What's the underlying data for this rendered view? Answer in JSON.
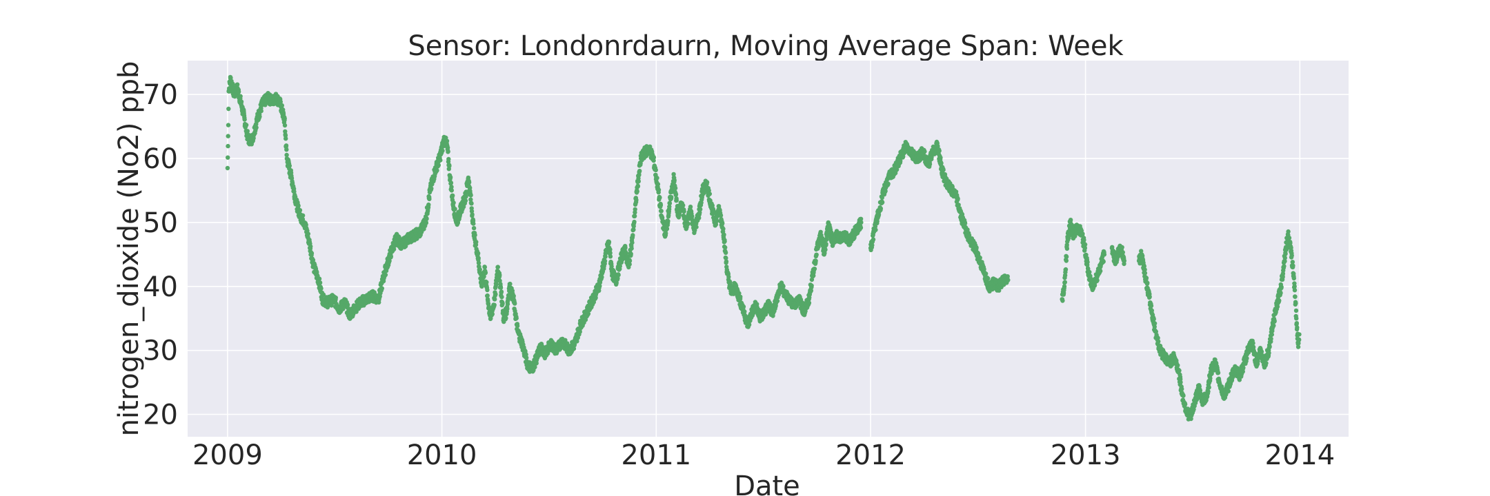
{
  "chart_data": {
    "type": "scatter",
    "title": "Sensor: Londonrdaurn, Moving Average Span: Week",
    "xlabel": "Date",
    "ylabel": "nitrogen_dioxide (No2) ppb",
    "x_ticks": [
      "2009",
      "2010",
      "2011",
      "2012",
      "2013",
      "2014"
    ],
    "y_ticks": [
      20,
      30,
      40,
      50,
      60,
      70
    ],
    "xlim": [
      "2008-10-25",
      "2014-03-25"
    ],
    "ylim": [
      16.5,
      75.3
    ],
    "grid": true,
    "legend": "none",
    "colors": {
      "series": "#55a868",
      "plot_bg": "#eaeaf2",
      "grid": "#ffffff",
      "text": "#262626"
    },
    "series": [
      {
        "segments": [
          [
            [
              "2009-01-01",
              58.5
            ],
            [
              "2009-01-02",
              63.5
            ],
            [
              "2009-01-03",
              70.5
            ],
            [
              "2009-01-06",
              72.5
            ],
            [
              "2009-01-12",
              70.0
            ],
            [
              "2009-01-18",
              71.0
            ],
            [
              "2009-01-28",
              67.0
            ],
            [
              "2009-02-05",
              63.0
            ],
            [
              "2009-02-12",
              63.0
            ],
            [
              "2009-02-20",
              66.0
            ],
            [
              "2009-03-01",
              68.5
            ],
            [
              "2009-03-10",
              69.5
            ],
            [
              "2009-03-18",
              69.0
            ],
            [
              "2009-03-25",
              69.5
            ],
            [
              "2009-04-01",
              68.5
            ],
            [
              "2009-04-08",
              66.0
            ],
            [
              "2009-04-12",
              60.0
            ],
            [
              "2009-04-20",
              57.0
            ],
            [
              "2009-04-28",
              53.0
            ],
            [
              "2009-05-05",
              51.0
            ],
            [
              "2009-05-12",
              50.0
            ],
            [
              "2009-05-20",
              47.0
            ],
            [
              "2009-05-28",
              43.0
            ],
            [
              "2009-06-05",
              41.0
            ],
            [
              "2009-06-12",
              38.0
            ],
            [
              "2009-06-20",
              37.5
            ],
            [
              "2009-07-01",
              38.0
            ],
            [
              "2009-07-10",
              36.5
            ],
            [
              "2009-07-20",
              37.5
            ],
            [
              "2009-07-28",
              35.5
            ],
            [
              "2009-08-05",
              36.5
            ],
            [
              "2009-08-15",
              37.5
            ],
            [
              "2009-08-25",
              38.0
            ],
            [
              "2009-09-05",
              38.5
            ],
            [
              "2009-09-15",
              38.0
            ],
            [
              "2009-09-25",
              42.0
            ],
            [
              "2009-10-05",
              45.0
            ],
            [
              "2009-10-15",
              47.5
            ],
            [
              "2009-10-25",
              46.5
            ],
            [
              "2009-11-05",
              47.5
            ],
            [
              "2009-11-15",
              48.0
            ],
            [
              "2009-11-25",
              48.5
            ],
            [
              "2009-12-05",
              50.5
            ],
            [
              "2009-12-12",
              55.0
            ],
            [
              "2009-12-20",
              58.0
            ],
            [
              "2009-12-28",
              60.0
            ],
            [
              "2010-01-05",
              63.0
            ],
            [
              "2010-01-10",
              62.0
            ],
            [
              "2010-01-15",
              57.0
            ],
            [
              "2010-01-20",
              53.0
            ],
            [
              "2010-01-26",
              50.0
            ],
            [
              "2010-02-02",
              52.0
            ],
            [
              "2010-02-10",
              54.0
            ],
            [
              "2010-02-15",
              57.0
            ],
            [
              "2010-02-20",
              53.0
            ],
            [
              "2010-02-25",
              48.0
            ],
            [
              "2010-03-03",
              45.0
            ],
            [
              "2010-03-10",
              40.0
            ],
            [
              "2010-03-15",
              43.0
            ],
            [
              "2010-03-20",
              38.0
            ],
            [
              "2010-03-25",
              35.0
            ],
            [
              "2010-04-01",
              38.0
            ],
            [
              "2010-04-06",
              43.0
            ],
            [
              "2010-04-11",
              40.0
            ],
            [
              "2010-04-16",
              35.0
            ],
            [
              "2010-04-21",
              36.0
            ],
            [
              "2010-04-26",
              40.0
            ],
            [
              "2010-05-03",
              38.0
            ],
            [
              "2010-05-10",
              33.0
            ],
            [
              "2010-05-18",
              31.0
            ],
            [
              "2010-05-26",
              28.0
            ],
            [
              "2010-06-03",
              27.0
            ],
            [
              "2010-06-10",
              28.5
            ],
            [
              "2010-06-18",
              30.5
            ],
            [
              "2010-06-26",
              29.5
            ],
            [
              "2010-07-05",
              31.0
            ],
            [
              "2010-07-15",
              30.0
            ],
            [
              "2010-07-25",
              31.5
            ],
            [
              "2010-08-05",
              30.0
            ],
            [
              "2010-08-15",
              31.0
            ],
            [
              "2010-08-25",
              34.0
            ],
            [
              "2010-09-05",
              36.0
            ],
            [
              "2010-09-15",
              38.0
            ],
            [
              "2010-09-25",
              40.0
            ],
            [
              "2010-10-05",
              44.0
            ],
            [
              "2010-10-12",
              47.0
            ],
            [
              "2010-10-18",
              42.0
            ],
            [
              "2010-10-25",
              41.0
            ],
            [
              "2010-11-01",
              44.0
            ],
            [
              "2010-11-08",
              46.0
            ],
            [
              "2010-11-15",
              43.0
            ],
            [
              "2010-11-22",
              48.0
            ],
            [
              "2010-11-29",
              55.0
            ],
            [
              "2010-12-06",
              60.0
            ],
            [
              "2010-12-13",
              61.0
            ],
            [
              "2010-12-20",
              61.5
            ],
            [
              "2010-12-27",
              60.0
            ],
            [
              "2011-01-03",
              56.0
            ],
            [
              "2011-01-10",
              51.0
            ],
            [
              "2011-01-17",
              48.0
            ],
            [
              "2011-01-24",
              53.0
            ],
            [
              "2011-01-31",
              57.0
            ],
            [
              "2011-02-07",
              51.0
            ],
            [
              "2011-02-14",
              53.0
            ],
            [
              "2011-02-21",
              49.0
            ],
            [
              "2011-02-28",
              52.0
            ],
            [
              "2011-03-07",
              49.0
            ],
            [
              "2011-03-14",
              51.0
            ],
            [
              "2011-03-21",
              55.0
            ],
            [
              "2011-03-28",
              56.0
            ],
            [
              "2011-04-04",
              53.0
            ],
            [
              "2011-04-11",
              50.0
            ],
            [
              "2011-04-18",
              52.0
            ],
            [
              "2011-04-25",
              49.0
            ],
            [
              "2011-05-02",
              42.0
            ],
            [
              "2011-05-09",
              39.0
            ],
            [
              "2011-05-16",
              40.0
            ],
            [
              "2011-05-23",
              38.0
            ],
            [
              "2011-05-30",
              36.0
            ],
            [
              "2011-06-06",
              34.0
            ],
            [
              "2011-06-13",
              36.0
            ],
            [
              "2011-06-20",
              37.0
            ],
            [
              "2011-06-27",
              35.0
            ],
            [
              "2011-07-04",
              36.0
            ],
            [
              "2011-07-11",
              37.0
            ],
            [
              "2011-07-18",
              36.0
            ],
            [
              "2011-07-25",
              38.0
            ],
            [
              "2011-08-01",
              40.0
            ],
            [
              "2011-08-08",
              39.0
            ],
            [
              "2011-08-15",
              38.0
            ],
            [
              "2011-08-22",
              37.0
            ],
            [
              "2011-09-01",
              38.0
            ],
            [
              "2011-09-10",
              36.0
            ],
            [
              "2011-09-18",
              38.0
            ],
            [
              "2011-09-25",
              42.0
            ],
            [
              "2011-10-02",
              46.0
            ],
            [
              "2011-10-09",
              48.0
            ],
            [
              "2011-10-14",
              45.0
            ],
            [
              "2011-10-21",
              50.0
            ],
            [
              "2011-10-28",
              47.0
            ],
            [
              "2011-11-04",
              48.0
            ],
            [
              "2011-11-11",
              47.5
            ],
            [
              "2011-11-18",
              48.0
            ],
            [
              "2011-11-25",
              47.0
            ],
            [
              "2011-12-02",
              48.0
            ],
            [
              "2011-12-09",
              49.0
            ],
            [
              "2011-12-16",
              50.0
            ]
          ],
          [
            [
              "2012-01-01",
              46.0
            ],
            [
              "2012-01-08",
              49.0
            ],
            [
              "2012-01-16",
              52.0
            ],
            [
              "2012-01-24",
              55.0
            ],
            [
              "2012-02-01",
              57.0
            ],
            [
              "2012-02-10",
              58.0
            ],
            [
              "2012-02-20",
              60.0
            ],
            [
              "2012-03-01",
              62.0
            ],
            [
              "2012-03-10",
              61.0
            ],
            [
              "2012-03-20",
              60.0
            ],
            [
              "2012-03-30",
              61.0
            ],
            [
              "2012-04-08",
              59.0
            ],
            [
              "2012-04-16",
              61.0
            ],
            [
              "2012-04-24",
              62.0
            ],
            [
              "2012-05-02",
              58.0
            ],
            [
              "2012-05-10",
              56.0
            ],
            [
              "2012-05-18",
              55.0
            ],
            [
              "2012-05-26",
              54.0
            ],
            [
              "2012-06-03",
              51.0
            ],
            [
              "2012-06-11",
              49.0
            ],
            [
              "2012-06-19",
              47.0
            ],
            [
              "2012-06-27",
              46.0
            ],
            [
              "2012-07-05",
              44.0
            ],
            [
              "2012-07-13",
              42.0
            ],
            [
              "2012-07-21",
              40.0
            ],
            [
              "2012-07-29",
              40.5
            ],
            [
              "2012-08-06",
              40.0
            ],
            [
              "2012-08-14",
              41.0
            ],
            [
              "2012-08-22",
              41.0
            ]
          ],
          [
            [
              "2012-11-22",
              38.0
            ],
            [
              "2012-11-26",
              40.0
            ],
            [
              "2012-12-01",
              47.0
            ],
            [
              "2012-12-06",
              50.0
            ],
            [
              "2012-12-11",
              48.0
            ],
            [
              "2012-12-16",
              49.0
            ],
            [
              "2012-12-21",
              49.0
            ],
            [
              "2012-12-26",
              48.0
            ],
            [
              "2012-12-31",
              46.0
            ],
            [
              "2013-01-06",
              42.0
            ],
            [
              "2013-01-12",
              40.0
            ],
            [
              "2013-01-18",
              41.0
            ],
            [
              "2013-01-26",
              43.0
            ],
            [
              "2013-02-02",
              45.0
            ]
          ],
          [
            [
              "2013-02-15",
              46.0
            ],
            [
              "2013-02-20",
              44.0
            ],
            [
              "2013-02-25",
              45.0
            ],
            [
              "2013-03-03",
              46.0
            ],
            [
              "2013-03-08",
              44.0
            ]
          ],
          [
            [
              "2013-04-02",
              44.0
            ],
            [
              "2013-04-07",
              45.0
            ],
            [
              "2013-04-14",
              41.0
            ],
            [
              "2013-04-22",
              37.0
            ],
            [
              "2013-04-30",
              33.0
            ],
            [
              "2013-05-08",
              30.0
            ],
            [
              "2013-05-16",
              29.0
            ],
            [
              "2013-05-24",
              28.0
            ],
            [
              "2013-06-01",
              29.0
            ],
            [
              "2013-06-08",
              27.0
            ],
            [
              "2013-06-15",
              23.0
            ],
            [
              "2013-06-22",
              20.5
            ],
            [
              "2013-06-29",
              19.5
            ],
            [
              "2013-07-06",
              22.0
            ],
            [
              "2013-07-13",
              24.0
            ],
            [
              "2013-07-20",
              22.0
            ],
            [
              "2013-07-27",
              23.0
            ],
            [
              "2013-08-03",
              27.0
            ],
            [
              "2013-08-10",
              28.0
            ],
            [
              "2013-08-17",
              25.0
            ],
            [
              "2013-08-24",
              23.0
            ],
            [
              "2013-08-31",
              24.0
            ],
            [
              "2013-09-07",
              26.0
            ],
            [
              "2013-09-14",
              27.0
            ],
            [
              "2013-09-21",
              26.0
            ],
            [
              "2013-09-28",
              28.0
            ],
            [
              "2013-10-05",
              30.0
            ],
            [
              "2013-10-12",
              31.0
            ],
            [
              "2013-10-19",
              28.0
            ],
            [
              "2013-10-26",
              30.0
            ],
            [
              "2013-11-02",
              28.0
            ],
            [
              "2013-11-09",
              30.0
            ],
            [
              "2013-11-16",
              34.0
            ],
            [
              "2013-11-23",
              37.0
            ],
            [
              "2013-11-30",
              40.0
            ],
            [
              "2013-12-04",
              43.0
            ],
            [
              "2013-12-08",
              46.0
            ],
            [
              "2013-12-12",
              48.0
            ],
            [
              "2013-12-16",
              46.0
            ],
            [
              "2013-12-20",
              43.0
            ],
            [
              "2013-12-23",
              40.0
            ],
            [
              "2013-12-26",
              35.0
            ],
            [
              "2013-12-29",
              31.0
            ],
            [
              "2013-12-31",
              32.5
            ]
          ]
        ]
      }
    ]
  }
}
